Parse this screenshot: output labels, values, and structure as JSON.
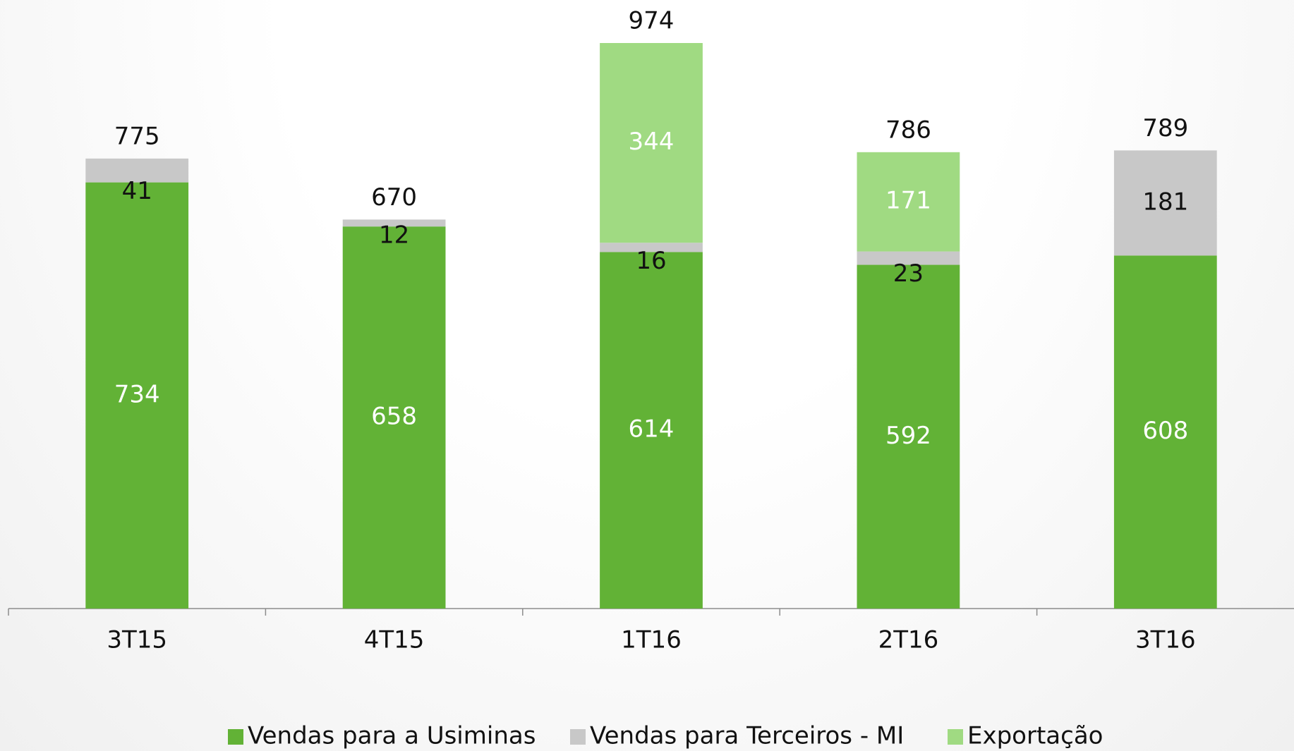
{
  "chart_data": {
    "type": "stacked_bar",
    "categories": [
      "3T15",
      "4T15",
      "1T16",
      "2T16",
      "3T16"
    ],
    "series": [
      {
        "name": "Vendas para a Usiminas",
        "color": "#62b236",
        "values": [
          734,
          658,
          614,
          592,
          608
        ]
      },
      {
        "name": "Vendas para Terceiros - MI",
        "color": "#c8c8c8",
        "values": [
          41,
          12,
          16,
          23,
          181
        ]
      },
      {
        "name": "Exportação",
        "color": "#a0da82",
        "values": [
          null,
          null,
          344,
          171,
          null
        ]
      }
    ],
    "totals": [
      775,
      670,
      974,
      786,
      789
    ],
    "legend": "bottom"
  }
}
